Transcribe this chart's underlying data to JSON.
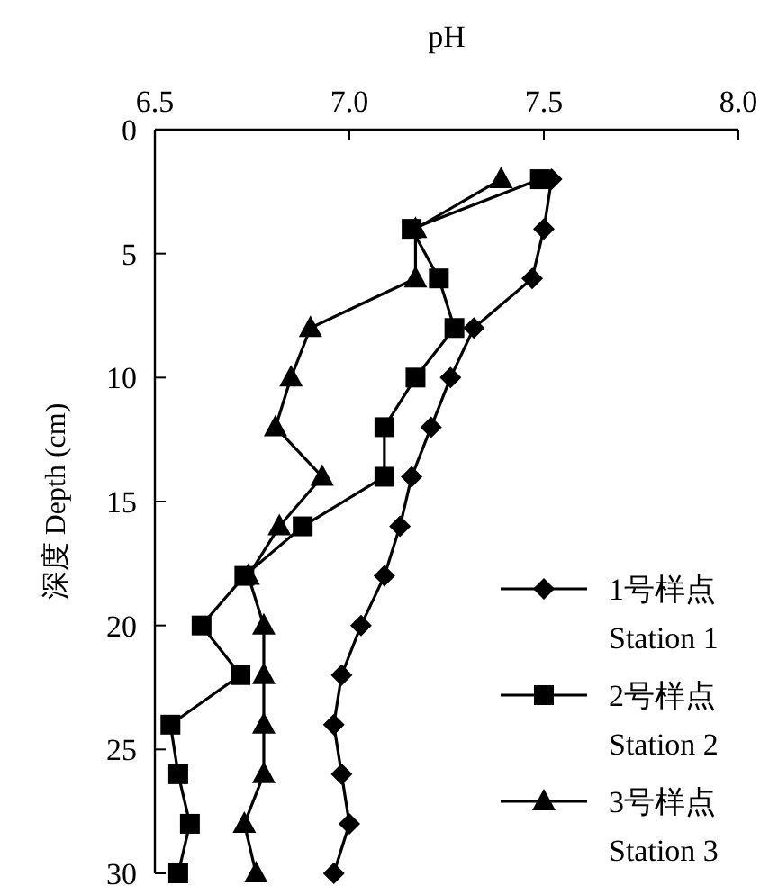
{
  "chart_data": {
    "type": "line",
    "xlabel": "pH",
    "ylabel": "深度 Depth (cm)",
    "xlim": [
      6.5,
      8.0
    ],
    "ylim": [
      30,
      0
    ],
    "xticks": [
      6.5,
      {
        "value": 7,
        "label": "7.0"
      },
      7.5,
      {
        "value": 8,
        "label": "8.0"
      }
    ],
    "yticks": [
      0,
      5,
      10,
      15,
      20,
      25,
      30
    ],
    "grid": false,
    "legend": "bottom right",
    "line_style": "solid",
    "series": [
      {
        "name": "1号样点\nStation 1",
        "color": "#000000",
        "marker": "diamond",
        "x": [
          7.52,
          7.5,
          7.47,
          7.32,
          7.26,
          7.21,
          7.16,
          7.13,
          7.09,
          7.03,
          6.98,
          6.96,
          6.98,
          7.0,
          6.96
        ],
        "values": [
          2,
          4,
          6,
          8,
          10,
          12,
          14,
          16,
          18,
          20,
          22,
          24,
          26,
          28,
          30
        ]
      },
      {
        "name": "2号样点\nStation 2",
        "color": "#000000",
        "marker": "square",
        "x": [
          7.49,
          7.16,
          7.23,
          7.27,
          7.17,
          7.09,
          7.09,
          6.88,
          6.73,
          6.62,
          6.72,
          6.54,
          6.56,
          6.59,
          6.56
        ],
        "values": [
          2,
          4,
          6,
          8,
          10,
          12,
          14,
          16,
          18,
          20,
          22,
          24,
          26,
          28,
          30
        ]
      },
      {
        "name": "3号样点\nStation 3",
        "color": "#000000",
        "marker": "triangle",
        "x": [
          7.39,
          7.17,
          7.17,
          6.9,
          6.85,
          6.81,
          6.93,
          6.82,
          6.74,
          6.78,
          6.78,
          6.78,
          6.78,
          6.73,
          6.76
        ],
        "values": [
          2,
          4,
          6,
          8,
          10,
          12,
          14,
          16,
          18,
          20,
          22,
          24,
          26,
          28,
          30
        ]
      }
    ]
  }
}
